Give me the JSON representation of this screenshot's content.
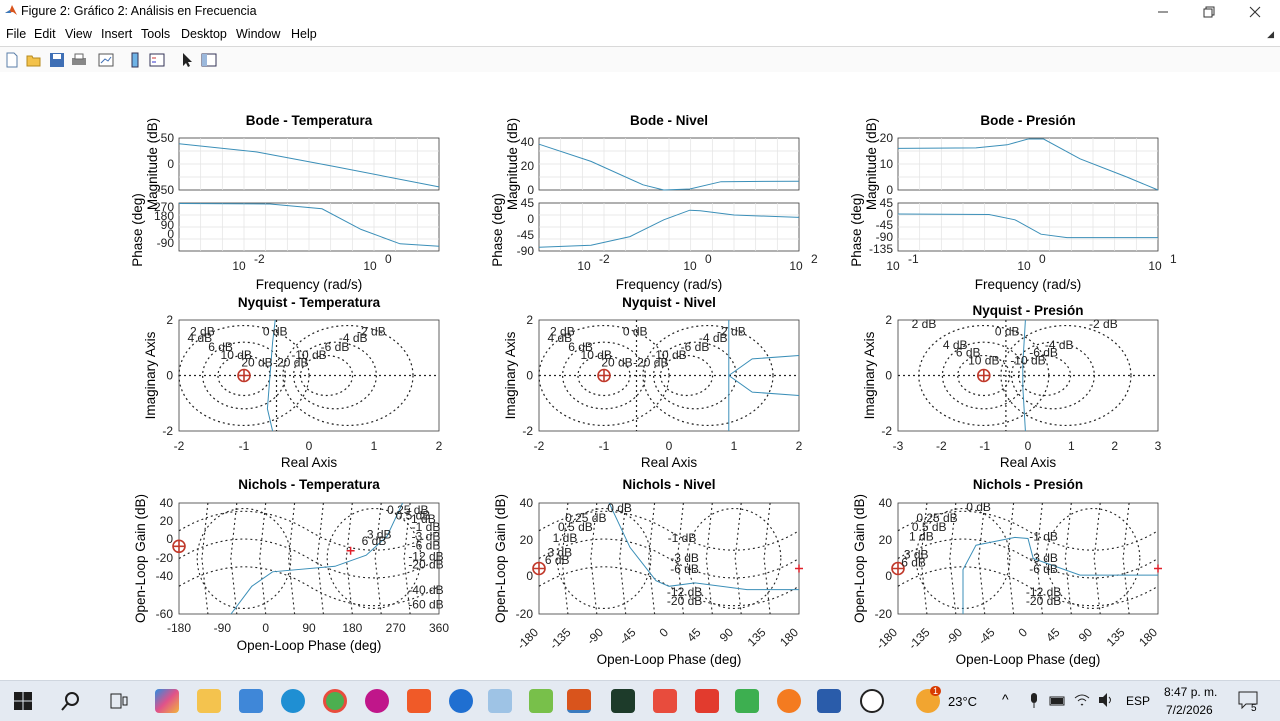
{
  "window": {
    "title": "Figure 2: Gráfico 2: Análisis en Frecuencia",
    "controls": [
      "minimize-icon",
      "restore-icon",
      "close-icon"
    ]
  },
  "menu": {
    "items": [
      "File",
      "Edit",
      "View",
      "Insert",
      "Tools",
      "Desktop",
      "Window",
      "Help"
    ]
  },
  "toolbar": {
    "buttons": [
      "new-figure-icon",
      "open-file-icon",
      "save-icon",
      "print-icon",
      "link-plot-icon",
      "colorbar-icon",
      "legend-icon",
      "pointer-icon",
      "property-inspector-icon"
    ]
  },
  "plots": {
    "bode_temp": {
      "title": "Bode - Temperatura",
      "mag_label": "Magnitude (dB)",
      "phase_label": "Phase (deg)",
      "xlabel": "Frequency  (rad/s)",
      "mag_ticks": [
        "50",
        "0",
        "-50"
      ],
      "phase_ticks": [
        "270",
        "180",
        "90",
        "0",
        "-90"
      ],
      "x_ticks": [
        "10",
        "10"
      ],
      "x_exps": [
        "-2",
        "0"
      ]
    },
    "bode_nivel": {
      "title": "Bode - Nivel",
      "mag_label": "Magnitude (dB)",
      "phase_label": "Phase (deg)",
      "xlabel": "Frequency  (rad/s)",
      "mag_ticks": [
        "40",
        "20",
        "0"
      ],
      "phase_ticks": [
        "45",
        "0",
        "-45",
        "-90"
      ],
      "x_ticks": [
        "10",
        "10",
        "10"
      ],
      "x_exps": [
        "-2",
        "0",
        "2"
      ]
    },
    "bode_presion": {
      "title": "Bode - Presión",
      "mag_label": "Magnitude (dB)",
      "phase_label": "Phase (deg)",
      "xlabel": "Frequency  (rad/s)",
      "mag_ticks": [
        "20",
        "10",
        "0"
      ],
      "phase_ticks": [
        "45",
        "0",
        "-45",
        "-90",
        "-135"
      ],
      "x_ticks": [
        "10",
        "10",
        "10"
      ],
      "x_exps": [
        "-1",
        "0",
        "1"
      ]
    },
    "nyq_temp": {
      "title": "Nyquist - Temperatura",
      "xlabel": "Real Axis",
      "ylabel": "Imaginary Axis",
      "x_ticks": [
        "-2",
        "-1",
        "0",
        "1",
        "2"
      ],
      "y_ticks": [
        "2",
        "0",
        "-2"
      ],
      "db_labels": [
        "0 dB",
        "2 dB",
        "-2 dB",
        "4 dB",
        "-4 dB",
        "6 dB",
        "-6 dB",
        "10 dB",
        "-10 dB",
        "20 dB",
        "-20 dB"
      ]
    },
    "nyq_nivel": {
      "title": "Nyquist - Nivel",
      "xlabel": "Real Axis",
      "ylabel": "Imaginary Axis",
      "x_ticks": [
        "-2",
        "-1",
        "0",
        "1",
        "2"
      ],
      "y_ticks": [
        "2",
        "0",
        "-2"
      ],
      "db_labels": [
        "0 dB",
        "2 dB",
        "-2 dB",
        "4 dB",
        "-4 dB",
        "6 dB",
        "-6 dB",
        "10 dB",
        "-10 dB",
        "20 dB",
        "-20 dB"
      ]
    },
    "nyq_presion": {
      "title": "Nyquist - Presión",
      "xlabel": "Real Axis",
      "ylabel": "Imaginary Axis",
      "x_ticks": [
        "-3",
        "-2",
        "-1",
        "0",
        "1",
        "2",
        "3"
      ],
      "y_ticks": [
        "2",
        "0",
        "-2"
      ],
      "db_labels": [
        "0 dB",
        "2 dB",
        "-2 dB",
        "4 dB",
        "-4 dB",
        "6 dB",
        "-6 dB",
        "10 dB",
        "-10 dB"
      ]
    },
    "nic_temp": {
      "title": "Nichols - Temperatura",
      "xlabel": "Open-Loop Phase (deg)",
      "ylabel": "Open-Loop Gain (dB)",
      "x_ticks": [
        "-180",
        "-90",
        "0",
        "90",
        "180",
        "270",
        "360"
      ],
      "y_ticks": [
        "40",
        "20",
        "0",
        "-20",
        "-40",
        "-60"
      ],
      "db_labels": [
        "0.25 dB",
        "0.5 dB",
        "1 dB",
        "-1 dB",
        "3 dB",
        "-3 dB",
        "6 dB",
        "-6 dB",
        "-12 dB",
        "-20 dB",
        "-40 dB",
        "-60 dB"
      ]
    },
    "nic_nivel": {
      "title": "Nichols - Nivel",
      "xlabel": "Open-Loop Phase (deg)",
      "ylabel": "Open-Loop Gain (dB)",
      "x_ticks": [
        "-180",
        "-135",
        "-90",
        "-45",
        "0",
        "45",
        "90",
        "135",
        "180"
      ],
      "y_ticks": [
        "40",
        "20",
        "0",
        "-20"
      ],
      "db_labels": [
        "0 dB",
        "0.25 dB",
        "0.5 dB",
        "1 dB",
        "-1 dB",
        "3 dB",
        "-3 dB",
        "6 dB",
        "-6 dB",
        "-12 dB",
        "-20 dB"
      ]
    },
    "nic_presion": {
      "title": "Nichols - Presión",
      "xlabel": "Open-Loop Phase (deg)",
      "ylabel": "Open-Loop Gain (dB)",
      "x_ticks": [
        "-180",
        "-135",
        "-90",
        "-45",
        "0",
        "45",
        "90",
        "135",
        "180"
      ],
      "y_ticks": [
        "40",
        "20",
        "0",
        "-20"
      ],
      "db_labels": [
        "0 dB",
        "0.25 dB",
        "0.5 dB",
        "1 dB",
        "-1 dB",
        "3 dB",
        "-3 dB",
        "6 dB",
        "-6 dB",
        "-12 dB",
        "-20 dB"
      ]
    }
  },
  "taskbar": {
    "weather": "23°C",
    "weather_badge": "1",
    "language": "ESP",
    "time": "8:47 p. m.",
    "date": "7/2/2026",
    "notifications": "5"
  },
  "colors": {
    "curve": "#3b8fb8",
    "marker": "#c0392b",
    "grid_dots": "#222222"
  }
}
